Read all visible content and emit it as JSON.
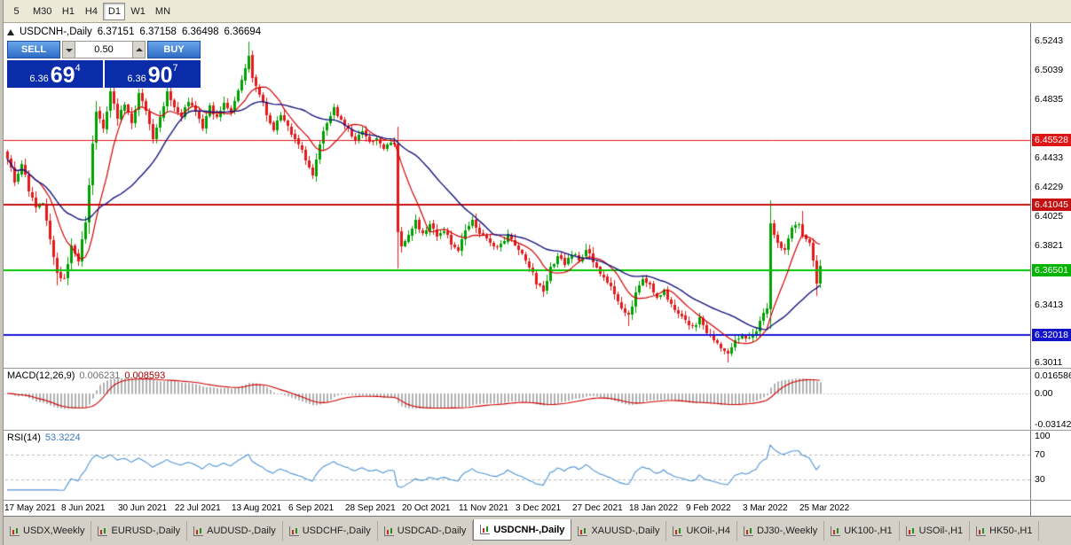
{
  "toolbar": {
    "timeframes": [
      {
        "label": "5",
        "active": false
      },
      {
        "label": "M30",
        "active": false
      },
      {
        "label": "H1",
        "active": false
      },
      {
        "label": "H4",
        "active": false
      },
      {
        "label": "D1",
        "active": true
      },
      {
        "label": "W1",
        "active": false
      },
      {
        "label": "MN",
        "active": false
      }
    ]
  },
  "chart_header": {
    "symbol": "USDCNH-,Daily",
    "open": "6.37151",
    "high": "6.37158",
    "low": "6.36498",
    "close": "6.36694"
  },
  "trade_panel": {
    "sell_label": "SELL",
    "buy_label": "BUY",
    "volume": "0.50",
    "bid": {
      "prefix": "6.36",
      "big": "69",
      "sup": "4"
    },
    "ask": {
      "prefix": "6.36",
      "big": "90",
      "sup": "7"
    }
  },
  "price_axis": {
    "ticks": [
      "6.5243",
      "6.5039",
      "6.4835",
      "6.4433",
      "6.4229",
      "6.4025",
      "6.3821",
      "6.3413",
      "6.3011"
    ],
    "levels": [
      {
        "value": 6.45528,
        "label": "6.45528",
        "badge": "#e01515",
        "line": "#e01515",
        "width": 1
      },
      {
        "value": 6.41045,
        "label": "6.41045",
        "badge": "#c51111",
        "line": "#c51111",
        "width": 2
      },
      {
        "value": 6.36501,
        "label": "6.36501",
        "badge": "#00b400",
        "line": "#00c400",
        "width": 2
      },
      {
        "value": 6.32018,
        "label": "6.32018",
        "badge": "#1313cc",
        "line": "#1616d6",
        "width": 2
      }
    ]
  },
  "macd_panel": {
    "name": "MACD(12,26,9)",
    "value_main": "0.006231",
    "value_signal": "0.008593",
    "axis": [
      "0.016586",
      "0.00",
      "-0.03142"
    ]
  },
  "rsi_panel": {
    "name": "RSI(14)",
    "value": "53.3224",
    "axis": [
      "100",
      "70",
      "30"
    ]
  },
  "date_axis": [
    "17 May 2021",
    "8 Jun 2021",
    "30 Jun 2021",
    "22 Jul 2021",
    "13 Aug 2021",
    "6 Sep 2021",
    "28 Sep 2021",
    "20 Oct 2021",
    "11 Nov 2021",
    "3 Dec 2021",
    "27 Dec 2021",
    "18 Jan 2022",
    "9 Feb 2022",
    "3 Mar 2022",
    "25 Mar 2022"
  ],
  "tabs": [
    {
      "label": "USDX,Weekly",
      "active": false
    },
    {
      "label": "EURUSD-,Daily",
      "active": false
    },
    {
      "label": "AUDUSD-,Daily",
      "active": false
    },
    {
      "label": "USDCHF-,Daily",
      "active": false
    },
    {
      "label": "USDCAD-,Daily",
      "active": false
    },
    {
      "label": "USDCNH-,Daily",
      "active": true
    },
    {
      "label": "XAUUSD-,Daily",
      "active": false
    },
    {
      "label": "UKOil-,H4",
      "active": false
    },
    {
      "label": "DJ30-,Weekly",
      "active": false
    },
    {
      "label": "UK100-,H1",
      "active": false
    },
    {
      "label": "USOil-,H1",
      "active": false
    },
    {
      "label": "HK50-,H1",
      "active": false
    }
  ],
  "colors": {
    "candle_up": "#00a000",
    "candle_down": "#e51919",
    "ma_fast": "#d40000",
    "ma_slow": "#15157e",
    "macd_hist": "#b0b0b0",
    "macd_signal": "#cf0000",
    "rsi": "#4f93d6",
    "trade_button": "#2e6cc8",
    "quote_panel": "#0a2ca8"
  },
  "chart_data": {
    "type": "candlestick",
    "symbol": "USDCNH-",
    "timeframe": "Daily",
    "visible_range": {
      "start": "17 May 2021",
      "end": "Apr 2022"
    },
    "price_range": [
      6.2974,
      6.5366
    ],
    "candle_count": 230,
    "current": {
      "open": 6.37151,
      "high": 6.37158,
      "low": 6.36498,
      "close": 6.36694,
      "bid": 6.36694,
      "ask": 6.36907
    },
    "horizontal_levels": [
      6.45528,
      6.41045,
      6.36501,
      6.32018
    ],
    "anchors": [
      [
        0,
        6.444
      ],
      [
        2,
        6.427
      ],
      [
        4,
        6.439
      ],
      [
        6,
        6.421
      ],
      [
        8,
        6.408
      ],
      [
        10,
        6.412
      ],
      [
        12,
        6.385
      ],
      [
        14,
        6.364
      ],
      [
        16,
        6.358
      ],
      [
        18,
        6.381
      ],
      [
        20,
        6.372
      ],
      [
        22,
        6.398
      ],
      [
        24,
        6.452
      ],
      [
        25,
        6.475
      ],
      [
        27,
        6.462
      ],
      [
        29,
        6.488
      ],
      [
        31,
        6.47
      ],
      [
        33,
        6.48
      ],
      [
        35,
        6.469
      ],
      [
        37,
        6.487
      ],
      [
        39,
        6.476
      ],
      [
        41,
        6.455
      ],
      [
        43,
        6.47
      ],
      [
        45,
        6.488
      ],
      [
        47,
        6.478
      ],
      [
        49,
        6.472
      ],
      [
        51,
        6.481
      ],
      [
        53,
        6.475
      ],
      [
        55,
        6.464
      ],
      [
        57,
        6.478
      ],
      [
        59,
        6.47
      ],
      [
        61,
        6.482
      ],
      [
        63,
        6.476
      ],
      [
        65,
        6.49
      ],
      [
        67,
        6.505
      ],
      [
        68,
        6.514
      ],
      [
        69,
        6.498
      ],
      [
        71,
        6.486
      ],
      [
        73,
        6.474
      ],
      [
        75,
        6.463
      ],
      [
        77,
        6.472
      ],
      [
        79,
        6.465
      ],
      [
        81,
        6.455
      ],
      [
        83,
        6.448
      ],
      [
        85,
        6.436
      ],
      [
        86,
        6.43
      ],
      [
        88,
        6.452
      ],
      [
        90,
        6.468
      ],
      [
        92,
        6.477
      ],
      [
        94,
        6.469
      ],
      [
        96,
        6.462
      ],
      [
        98,
        6.455
      ],
      [
        100,
        6.461
      ],
      [
        102,
        6.453
      ],
      [
        104,
        6.458
      ],
      [
        106,
        6.449
      ],
      [
        108,
        6.453
      ],
      [
        109,
        6.451
      ],
      [
        110,
        6.392
      ],
      [
        111,
        6.381
      ],
      [
        113,
        6.39
      ],
      [
        115,
        6.399
      ],
      [
        117,
        6.391
      ],
      [
        119,
        6.398
      ],
      [
        121,
        6.387
      ],
      [
        123,
        6.393
      ],
      [
        125,
        6.384
      ],
      [
        127,
        6.38
      ],
      [
        129,
        6.392
      ],
      [
        131,
        6.399
      ],
      [
        133,
        6.391
      ],
      [
        135,
        6.386
      ],
      [
        137,
        6.38
      ],
      [
        139,
        6.384
      ],
      [
        141,
        6.389
      ],
      [
        143,
        6.382
      ],
      [
        145,
        6.375
      ],
      [
        147,
        6.368
      ],
      [
        149,
        6.356
      ],
      [
        151,
        6.352
      ],
      [
        153,
        6.366
      ],
      [
        155,
        6.374
      ],
      [
        157,
        6.37
      ],
      [
        159,
        6.377
      ],
      [
        161,
        6.372
      ],
      [
        163,
        6.379
      ],
      [
        165,
        6.371
      ],
      [
        167,
        6.364
      ],
      [
        169,
        6.357
      ],
      [
        171,
        6.35
      ],
      [
        173,
        6.34
      ],
      [
        175,
        6.333
      ],
      [
        177,
        6.35
      ],
      [
        179,
        6.36
      ],
      [
        181,
        6.354
      ],
      [
        183,
        6.345
      ],
      [
        185,
        6.352
      ],
      [
        187,
        6.341
      ],
      [
        189,
        6.334
      ],
      [
        191,
        6.33
      ],
      [
        193,
        6.325
      ],
      [
        195,
        6.331
      ],
      [
        197,
        6.322
      ],
      [
        199,
        6.317
      ],
      [
        201,
        6.311
      ],
      [
        203,
        6.306
      ],
      [
        205,
        6.315
      ],
      [
        207,
        6.321
      ],
      [
        209,
        6.317
      ],
      [
        211,
        6.324
      ],
      [
        213,
        6.335
      ],
      [
        214,
        6.338
      ],
      [
        215,
        6.396
      ],
      [
        217,
        6.384
      ],
      [
        219,
        6.379
      ],
      [
        221,
        6.393
      ],
      [
        223,
        6.397
      ],
      [
        224,
        6.391
      ],
      [
        226,
        6.384
      ],
      [
        227,
        6.371
      ],
      [
        228,
        6.357
      ],
      [
        229,
        6.367
      ]
    ],
    "wick_highs": [
      [
        68,
        6.5235
      ],
      [
        215,
        6.4135
      ],
      [
        224,
        6.406
      ]
    ],
    "wick_lows": [
      [
        14,
        6.3545
      ],
      [
        110,
        6.366
      ],
      [
        175,
        6.3265
      ],
      [
        203,
        6.3012
      ],
      [
        228,
        6.3475
      ]
    ],
    "indicators": {
      "ma_fast_period": 10,
      "ma_slow_period": 28,
      "macd": {
        "fast": 12,
        "slow": 26,
        "signal": 9,
        "current_main": 0.006231,
        "current_signal": 0.008593
      },
      "rsi": {
        "period": 14,
        "current": 53.3224
      }
    }
  }
}
